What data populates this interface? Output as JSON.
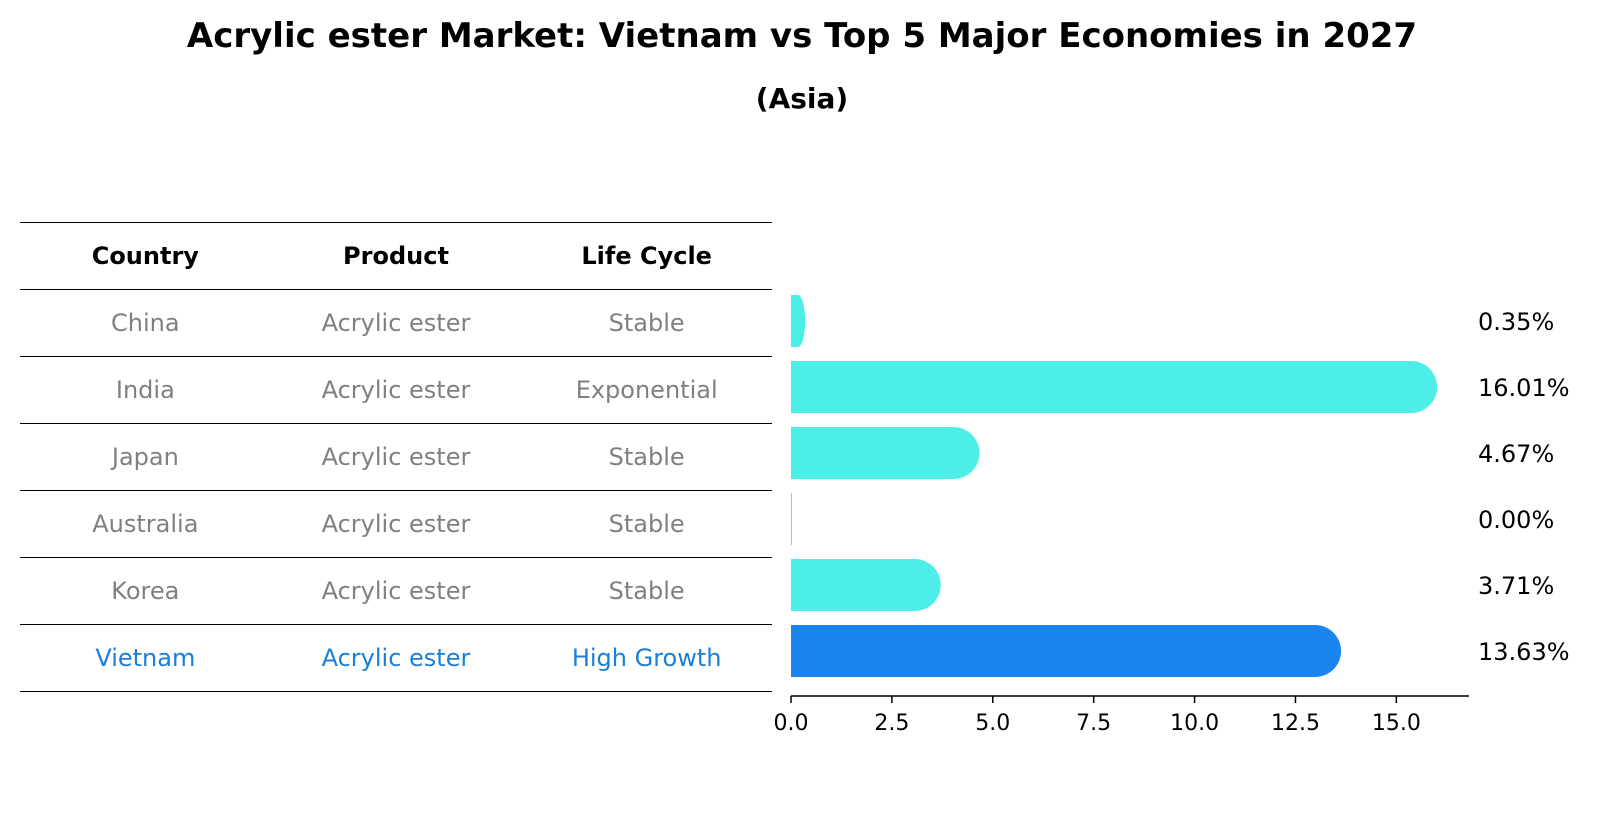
{
  "header": {
    "title": "Acrylic ester Market: Vietnam vs Top 5 Major Economies in 2027",
    "subtitle": "(Asia)"
  },
  "table": {
    "columns": [
      "Country",
      "Product",
      "Life Cycle"
    ],
    "rows": [
      {
        "country": "China",
        "product": "Acrylic ester",
        "life_cycle": "Stable"
      },
      {
        "country": "India",
        "product": "Acrylic ester",
        "life_cycle": "Exponential"
      },
      {
        "country": "Japan",
        "product": "Acrylic ester",
        "life_cycle": "Stable"
      },
      {
        "country": "Australia",
        "product": "Acrylic ester",
        "life_cycle": "Stable"
      },
      {
        "country": "Korea",
        "product": "Acrylic ester",
        "life_cycle": "Stable"
      },
      {
        "country": "Vietnam",
        "product": "Acrylic ester",
        "life_cycle": "High Growth"
      }
    ]
  },
  "colors": {
    "bar": "#4deee8",
    "highlight": "#1a85f0",
    "highlight_text": "#1a7fd6",
    "muted_text": "#808080"
  },
  "chart_data": {
    "type": "bar",
    "orientation": "horizontal",
    "categories": [
      "China",
      "India",
      "Japan",
      "Australia",
      "Korea",
      "Vietnam"
    ],
    "values": [
      0.35,
      16.01,
      4.67,
      0.0,
      3.71,
      13.63
    ],
    "value_labels": [
      "0.35%",
      "16.01%",
      "4.67%",
      "0.00%",
      "3.71%",
      "13.63%"
    ],
    "highlight_category": "Vietnam",
    "xlim": [
      0,
      16.8
    ],
    "xticks": [
      0.0,
      2.5,
      5.0,
      7.5,
      10.0,
      12.5,
      15.0
    ],
    "xtick_labels": [
      "0.0",
      "2.5",
      "5.0",
      "7.5",
      "10.0",
      "12.5",
      "15.0"
    ],
    "grid": false
  }
}
